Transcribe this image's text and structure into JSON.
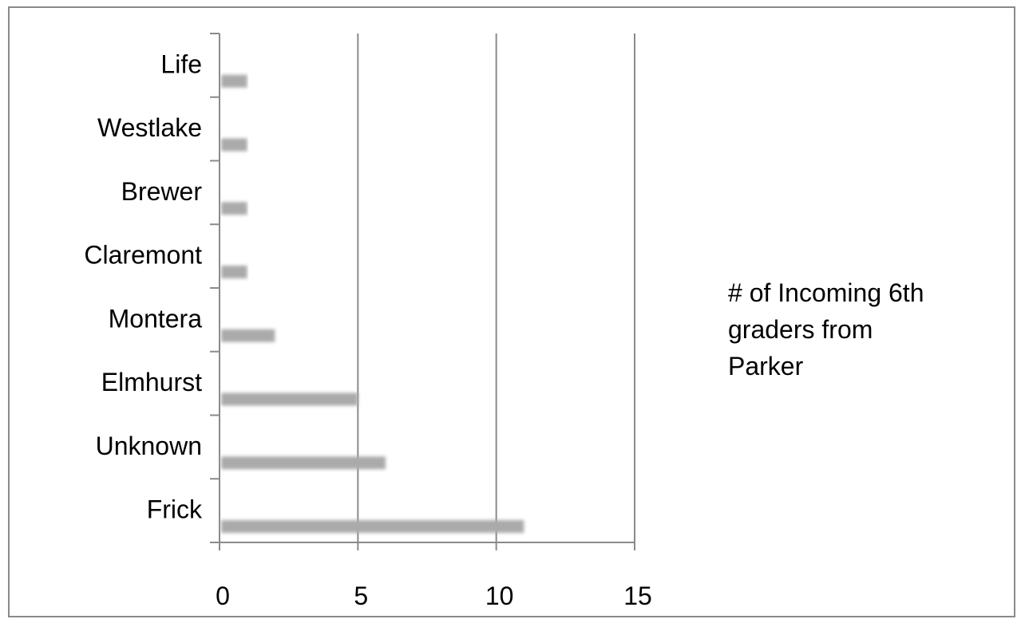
{
  "chart_data": {
    "type": "bar",
    "orientation": "horizontal",
    "categories": [
      "Frick",
      "Unknown",
      "Elmhurst",
      "Montera",
      "Claremont",
      "Brewer",
      "Westlake",
      "Life"
    ],
    "series": [
      {
        "name": "# of Incoming 6th graders from Parker",
        "values": [
          11,
          6,
          5,
          2,
          1,
          1,
          1,
          1
        ]
      }
    ],
    "xlim": [
      0,
      15
    ],
    "xticks": [
      "0",
      "5",
      "10",
      "15"
    ],
    "grid": true,
    "legend_position": "right",
    "legend_lines": [
      "# of Incoming 6th",
      "graders from",
      "Parker"
    ],
    "colors": {
      "bar": "#aaaaaa",
      "axis": "#8a8a8a",
      "grid": "#8a8a8a"
    }
  }
}
